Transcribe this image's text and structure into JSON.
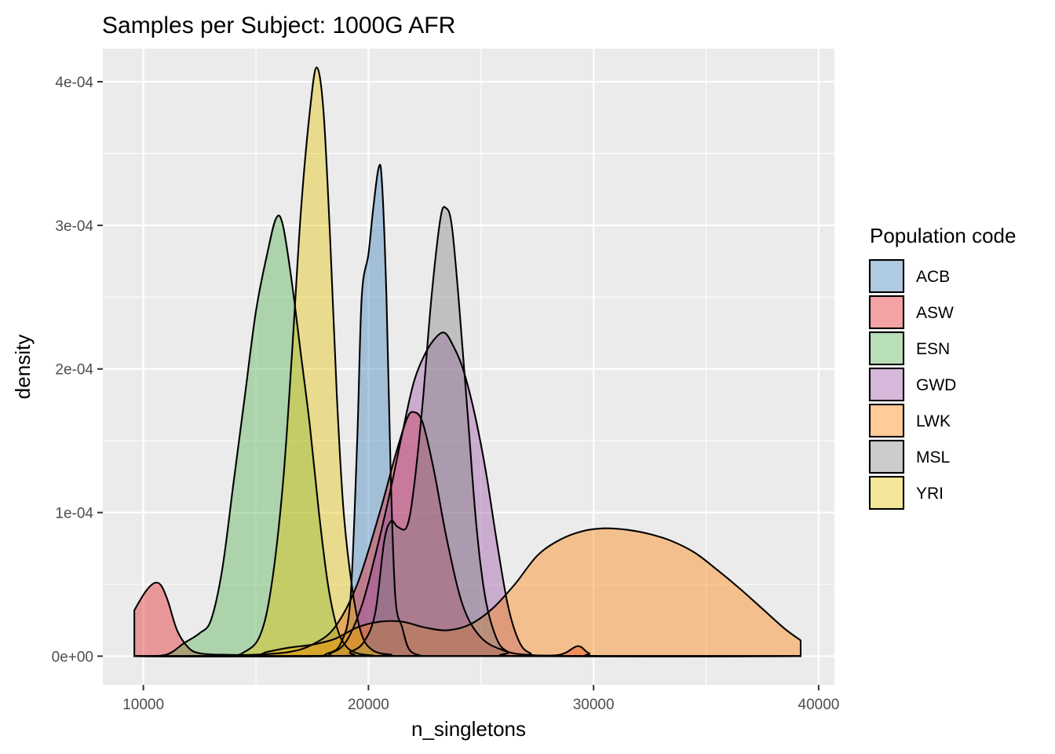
{
  "chart_data": {
    "type": "area",
    "subtype": "density",
    "title": "Samples per Subject: 1000G AFR",
    "xlabel": "n_singletons",
    "ylabel": "density",
    "xlim": [
      8200,
      40700
    ],
    "ylim": [
      -2e-05,
      0.000423
    ],
    "x_ticks": [
      10000,
      20000,
      30000,
      40000
    ],
    "x_tick_labels": [
      "10000",
      "20000",
      "30000",
      "40000"
    ],
    "y_ticks": [
      0,
      0.0001,
      0.0002,
      0.0003,
      0.0004
    ],
    "y_tick_labels": [
      "0e+00",
      "1e-04",
      "2e-04",
      "3e-04",
      "4e-04"
    ],
    "grid": true,
    "background": "#ebebeb",
    "fill_opacity": 0.4,
    "legend": {
      "title": "Population code",
      "placement": "right"
    },
    "series": [
      {
        "name": "ACB",
        "color": "#377eb8",
        "points": [
          [
            9600,
            0
          ],
          [
            17000,
            0
          ],
          [
            18200,
            2e-06
          ],
          [
            18800,
            1e-05
          ],
          [
            19200,
            4e-05
          ],
          [
            19500,
            0.00015
          ],
          [
            19700,
            0.00025
          ],
          [
            20000,
            0.00028
          ],
          [
            20200,
            0.00031
          ],
          [
            20450,
            0.00034
          ],
          [
            20600,
            0.00033
          ],
          [
            20800,
            0.00025
          ],
          [
            21000,
            0.00012
          ],
          [
            21200,
            4e-05
          ],
          [
            21500,
            2e-05
          ],
          [
            21800,
            5e-06
          ],
          [
            22300,
            5e-07
          ],
          [
            23000,
            0
          ],
          [
            39200,
            0
          ]
        ]
      },
      {
        "name": "ASW",
        "color": "#e41a1c",
        "points": [
          [
            9600,
            3.2e-05
          ],
          [
            10100,
            4.5e-05
          ],
          [
            10500,
            5.1e-05
          ],
          [
            10800,
            4.9e-05
          ],
          [
            11100,
            3.8e-05
          ],
          [
            11500,
            1.8e-05
          ],
          [
            12000,
            6e-06
          ],
          [
            12500,
            2e-06
          ],
          [
            13500,
            1e-06
          ],
          [
            15000,
            1e-06
          ],
          [
            16500,
            3e-06
          ],
          [
            17500,
            8e-06
          ],
          [
            18500,
            2e-05
          ],
          [
            19500,
            5e-05
          ],
          [
            20500,
            0.0001
          ],
          [
            21200,
            0.00014
          ],
          [
            21700,
            0.000165
          ],
          [
            22000,
            0.00017
          ],
          [
            22400,
            0.000163
          ],
          [
            22900,
            0.00013
          ],
          [
            23500,
            8e-05
          ],
          [
            24200,
            3.5e-05
          ],
          [
            25000,
            1.3e-05
          ],
          [
            26000,
            4e-06
          ],
          [
            27000,
            1e-06
          ],
          [
            28500,
            1e-06
          ],
          [
            29300,
            7e-06
          ],
          [
            29800,
            2e-06
          ],
          [
            30500,
            0
          ],
          [
            39200,
            0
          ]
        ]
      },
      {
        "name": "ESN",
        "color": "#4daf4a",
        "points": [
          [
            9600,
            0
          ],
          [
            11000,
            1e-06
          ],
          [
            11800,
            9e-06
          ],
          [
            12500,
            1.6e-05
          ],
          [
            13000,
            2.5e-05
          ],
          [
            13500,
            6e-05
          ],
          [
            14000,
            0.00012
          ],
          [
            14500,
            0.00018
          ],
          [
            15000,
            0.00024
          ],
          [
            15500,
            0.00028
          ],
          [
            15900,
            0.000305
          ],
          [
            16200,
            0.0003
          ],
          [
            16600,
            0.00026
          ],
          [
            17000,
            0.00021
          ],
          [
            17400,
            0.00016
          ],
          [
            17800,
            0.0001
          ],
          [
            18200,
            5e-05
          ],
          [
            18600,
            2e-05
          ],
          [
            19000,
            7e-06
          ],
          [
            19500,
            2e-06
          ],
          [
            20200,
            5e-07
          ],
          [
            21000,
            0
          ],
          [
            39200,
            0
          ]
        ]
      },
      {
        "name": "GWD",
        "color": "#984ea3",
        "points": [
          [
            9600,
            0
          ],
          [
            17500,
            0
          ],
          [
            18300,
            2e-06
          ],
          [
            19000,
            1e-05
          ],
          [
            19700,
            3.5e-05
          ],
          [
            20300,
            7e-05
          ],
          [
            20900,
            0.00011
          ],
          [
            21500,
            0.000155
          ],
          [
            22000,
            0.00019
          ],
          [
            22500,
            0.00021
          ],
          [
            23000,
            0.000222
          ],
          [
            23400,
            0.000225
          ],
          [
            23800,
            0.000215
          ],
          [
            24200,
            0.0002
          ],
          [
            24700,
            0.00017
          ],
          [
            25200,
            0.00013
          ],
          [
            25700,
            8e-05
          ],
          [
            26200,
            3.5e-05
          ],
          [
            26700,
            1e-05
          ],
          [
            27200,
            2e-06
          ],
          [
            28000,
            0
          ],
          [
            39200,
            0
          ]
        ]
      },
      {
        "name": "LWK",
        "color": "#ff7f00",
        "points": [
          [
            9600,
            0
          ],
          [
            14500,
            0
          ],
          [
            15500,
            3e-06
          ],
          [
            16500,
            6e-06
          ],
          [
            17500,
            8e-06
          ],
          [
            18500,
            1.2e-05
          ],
          [
            19500,
            2e-05
          ],
          [
            20500,
            2.4e-05
          ],
          [
            21500,
            2.4e-05
          ],
          [
            22500,
            2e-05
          ],
          [
            23500,
            1.8e-05
          ],
          [
            24500,
            2.2e-05
          ],
          [
            25500,
            3.3e-05
          ],
          [
            26500,
            5e-05
          ],
          [
            27500,
            7e-05
          ],
          [
            28500,
            8.1e-05
          ],
          [
            29500,
            8.7e-05
          ],
          [
            30500,
            8.9e-05
          ],
          [
            31500,
            8.8e-05
          ],
          [
            32500,
            8.5e-05
          ],
          [
            33500,
            8e-05
          ],
          [
            34500,
            7.2e-05
          ],
          [
            35500,
            6e-05
          ],
          [
            36500,
            4.7e-05
          ],
          [
            37500,
            3.3e-05
          ],
          [
            38500,
            1.9e-05
          ],
          [
            39200,
            1.1e-05
          ]
        ]
      },
      {
        "name": "MSL",
        "color": "#7f7f7f",
        "points": [
          [
            9600,
            0
          ],
          [
            18500,
            0
          ],
          [
            19200,
            3e-06
          ],
          [
            19800,
            1e-05
          ],
          [
            20300,
            3e-05
          ],
          [
            20700,
            8e-05
          ],
          [
            21000,
            9.4e-05
          ],
          [
            21300,
            9e-05
          ],
          [
            21700,
            9e-05
          ],
          [
            22000,
            0.000115
          ],
          [
            22400,
            0.000175
          ],
          [
            22800,
            0.00025
          ],
          [
            23200,
            0.000305
          ],
          [
            23450,
            0.000312
          ],
          [
            23700,
            0.0003
          ],
          [
            24000,
            0.00025
          ],
          [
            24400,
            0.00017
          ],
          [
            24800,
            9e-05
          ],
          [
            25200,
            4e-05
          ],
          [
            25700,
            1.2e-05
          ],
          [
            26200,
            3e-06
          ],
          [
            27000,
            0
          ],
          [
            39200,
            0
          ]
        ]
      },
      {
        "name": "YRI",
        "color": "#e6c300",
        "points": [
          [
            9600,
            0
          ],
          [
            13500,
            0
          ],
          [
            14500,
            3e-06
          ],
          [
            15200,
            1.5e-05
          ],
          [
            15700,
            5e-05
          ],
          [
            16200,
            0.00012
          ],
          [
            16600,
            0.00021
          ],
          [
            17000,
            0.00031
          ],
          [
            17400,
            0.00038
          ],
          [
            17700,
            0.00041
          ],
          [
            18000,
            0.00038
          ],
          [
            18300,
            0.00029
          ],
          [
            18600,
            0.00018
          ],
          [
            18900,
            0.0001
          ],
          [
            19300,
            4.5e-05
          ],
          [
            19700,
            1.5e-05
          ],
          [
            20200,
            4e-06
          ],
          [
            21000,
            1e-06
          ],
          [
            22000,
            0
          ],
          [
            39200,
            0
          ]
        ]
      }
    ]
  }
}
